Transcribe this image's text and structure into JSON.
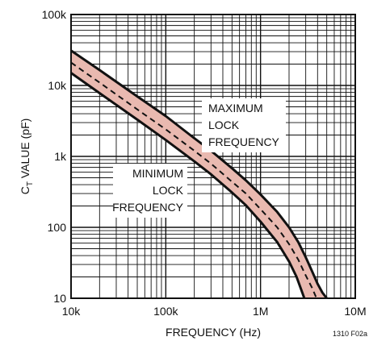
{
  "chart_data": {
    "type": "line",
    "x_scale": "log",
    "y_scale": "log",
    "xlim": [
      10000,
      10000000
    ],
    "ylim": [
      10,
      100000
    ],
    "grid": true,
    "xlabel": "FREQUENCY (Hz)",
    "ylabel": {
      "main": "C",
      "sub": "T",
      "rest": " VALUE (pF)"
    },
    "x_ticks": [
      {
        "value": 10000,
        "label": "10k"
      },
      {
        "value": 100000,
        "label": "100k"
      },
      {
        "value": 1000000,
        "label": "1M"
      },
      {
        "value": 10000000,
        "label": "10M"
      }
    ],
    "y_ticks": [
      {
        "value": 10,
        "label": "10"
      },
      {
        "value": 100,
        "label": "100"
      },
      {
        "value": 1000,
        "label": "1k"
      },
      {
        "value": 10000,
        "label": "10k"
      },
      {
        "value": 100000,
        "label": "100k"
      }
    ],
    "band_fill": "#e9b9b0",
    "line_color": "#111111",
    "series": [
      {
        "style": "solid",
        "points": [
          [
            10000,
            31000
          ],
          [
            20000,
            16500
          ],
          [
            50000,
            7000
          ],
          [
            100000,
            3700
          ],
          [
            200000,
            1800
          ],
          [
            300000,
            1200
          ],
          [
            500000,
            680
          ],
          [
            700000,
            460
          ],
          [
            1000000,
            290
          ],
          [
            1500000,
            165
          ],
          [
            2000000,
            100
          ],
          [
            2500000,
            62
          ],
          [
            3000000,
            38
          ],
          [
            3500000,
            24
          ],
          [
            4000000,
            16
          ],
          [
            4500000,
            12
          ],
          [
            5000000,
            10
          ]
        ]
      },
      {
        "style": "dashed",
        "points": [
          [
            10000,
            21000
          ],
          [
            20000,
            11000
          ],
          [
            50000,
            4600
          ],
          [
            100000,
            2400
          ],
          [
            200000,
            1200
          ],
          [
            300000,
            790
          ],
          [
            500000,
            440
          ],
          [
            700000,
            300
          ],
          [
            1000000,
            180
          ],
          [
            1500000,
            100
          ],
          [
            2000000,
            58
          ],
          [
            2500000,
            35
          ],
          [
            3000000,
            21
          ],
          [
            3500000,
            14
          ],
          [
            3900000,
            10
          ]
        ]
      },
      {
        "style": "solid",
        "points": [
          [
            10000,
            15000
          ],
          [
            20000,
            7800
          ],
          [
            50000,
            3300
          ],
          [
            100000,
            1700
          ],
          [
            200000,
            850
          ],
          [
            300000,
            560
          ],
          [
            500000,
            310
          ],
          [
            700000,
            205
          ],
          [
            1000000,
            120
          ],
          [
            1500000,
            62
          ],
          [
            2000000,
            33
          ],
          [
            2400000,
            20
          ],
          [
            2700000,
            13
          ],
          [
            2900000,
            10
          ]
        ]
      }
    ],
    "annotations": [
      {
        "id": "max",
        "lines": [
          "MAXIMUM",
          "LOCK",
          "FREQUENCY"
        ]
      },
      {
        "id": "min",
        "lines": [
          "MINIMUM",
          "LOCK",
          "FREQUENCY"
        ]
      }
    ],
    "figure_id": "1310 F02a"
  }
}
